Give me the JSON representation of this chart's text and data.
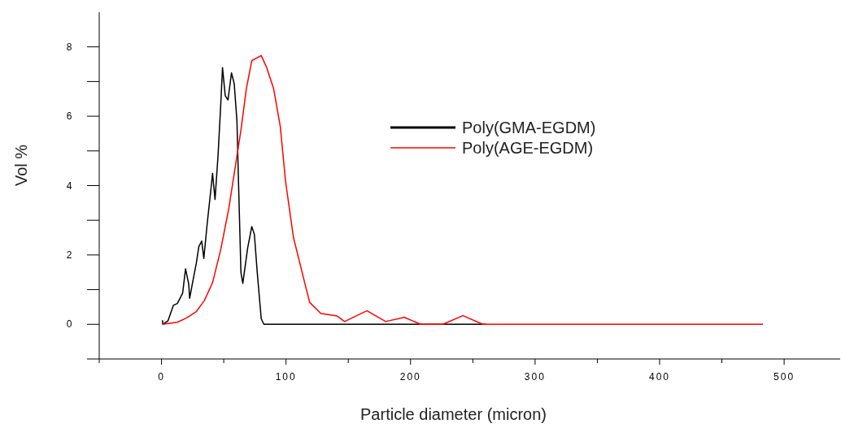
{
  "chart_data": {
    "type": "line",
    "xlabel": "Particle diameter (micron)",
    "ylabel": "Vol %",
    "xlim": [
      -50,
      545
    ],
    "xticks": [
      {
        "value": -50,
        "label": null
      },
      0,
      {
        "value": 50,
        "label": null
      },
      100,
      {
        "value": 150,
        "label": null
      },
      200,
      {
        "value": 250,
        "label": null
      },
      300,
      {
        "value": 350,
        "label": null
      },
      400,
      {
        "value": 450,
        "label": null
      },
      500
    ],
    "ylim": [
      -1,
      9
    ],
    "yticks": [
      {
        "value": -1,
        "label": null
      },
      0,
      {
        "value": 1,
        "label": null
      },
      2,
      {
        "value": 3,
        "label": null
      },
      4,
      {
        "value": 5,
        "label": null
      },
      6,
      {
        "value": 7,
        "label": null
      },
      8
    ],
    "grid": false,
    "legend": "right",
    "marker": "none",
    "line_style": "solid",
    "series": [
      {
        "name": "Poly(GMA-EGDM)",
        "color": "#000000",
        "x": [
          0.8,
          1,
          5.2,
          9.6,
          12.8,
          17,
          19.3,
          21.9,
          22.6,
          24.7,
          28,
          30,
          32.3,
          34,
          36.7,
          40,
          41,
          43,
          45.4,
          47.6,
          49,
          51.2,
          53.4,
          56.2,
          58.4,
          60.6,
          61.7,
          63.8,
          65.3,
          69.2,
          72.5,
          74.6,
          76.9,
          80.1,
          82.2,
          261
        ],
        "values": [
          0.12,
          0,
          0.1,
          0.55,
          0.6,
          0.9,
          1.6,
          1.15,
          0.75,
          1.15,
          1.77,
          2.24,
          2.4,
          1.9,
          2.9,
          4.0,
          4.35,
          3.6,
          4.86,
          6.35,
          7.4,
          6.59,
          6.47,
          7.25,
          6.94,
          5.86,
          4.3,
          1.49,
          1.18,
          2.2,
          2.82,
          2.59,
          1.49,
          0.16,
          0,
          0
        ]
      },
      {
        "name": "Poly(AGE-EGDM)",
        "color": "#ff0000",
        "x": [
          1,
          12.8,
          20,
          28,
          34.5,
          41,
          47.6,
          54,
          59.5,
          63.8,
          68.2,
          72.5,
          80.1,
          84.5,
          90,
          95.4,
          99.7,
          106,
          115,
          119,
          128,
          141,
          147,
          165,
          180,
          195,
          208,
          226,
          242,
          258,
          483
        ],
        "values": [
          0,
          0.06,
          0.18,
          0.37,
          0.69,
          1.2,
          2.16,
          3.33,
          4.6,
          5.6,
          6.8,
          7.6,
          7.75,
          7.4,
          6.8,
          5.7,
          4.1,
          2.5,
          1.2,
          0.63,
          0.31,
          0.24,
          0.08,
          0.39,
          0.08,
          0.2,
          0,
          0,
          0.25,
          0,
          0
        ]
      }
    ]
  }
}
